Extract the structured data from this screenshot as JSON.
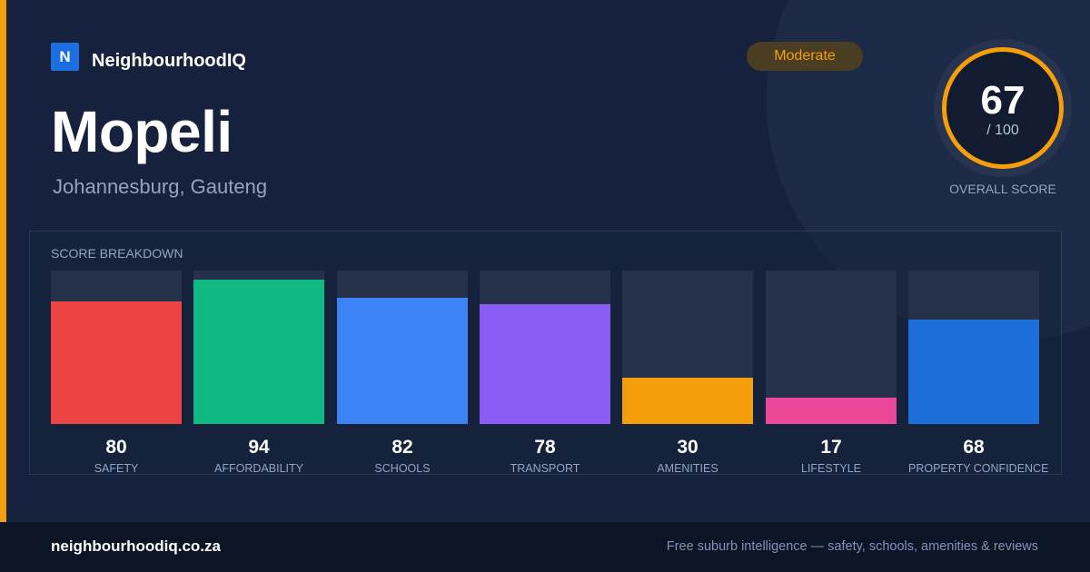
{
  "brand": {
    "logo_letter": "N",
    "name": "NeighbourhoodIQ",
    "color": "#1d6ee0"
  },
  "header": {
    "title": "Mopeli",
    "subtitle": "Johannesburg, Gauteng"
  },
  "badge": {
    "label": "Moderate",
    "color": "#f59e0b"
  },
  "overall_score": {
    "value": "67",
    "max": "/ 100",
    "label": "OVERALL SCORE",
    "ring_color": "#f59e0b"
  },
  "breakdown": {
    "title": "SCORE BREAKDOWN",
    "items": [
      {
        "label": "SAFETY",
        "value": 80,
        "color": "#ef4444"
      },
      {
        "label": "AFFORDABILITY",
        "value": 94,
        "color": "#10b981"
      },
      {
        "label": "SCHOOLS",
        "value": 82,
        "color": "#3b82f6"
      },
      {
        "label": "TRANSPORT",
        "value": 78,
        "color": "#8b5cf6"
      },
      {
        "label": "AMENITIES",
        "value": 30,
        "color": "#f59e0b"
      },
      {
        "label": "LIFESTYLE",
        "value": 17,
        "color": "#ec4899"
      },
      {
        "label": "PROPERTY CONFIDENCE",
        "value": 68,
        "color": "#1d6ed8"
      }
    ]
  },
  "footer": {
    "url": "neighbourhoodiq.co.za",
    "tagline": "Free suburb intelligence — safety, schools, amenities & reviews"
  }
}
